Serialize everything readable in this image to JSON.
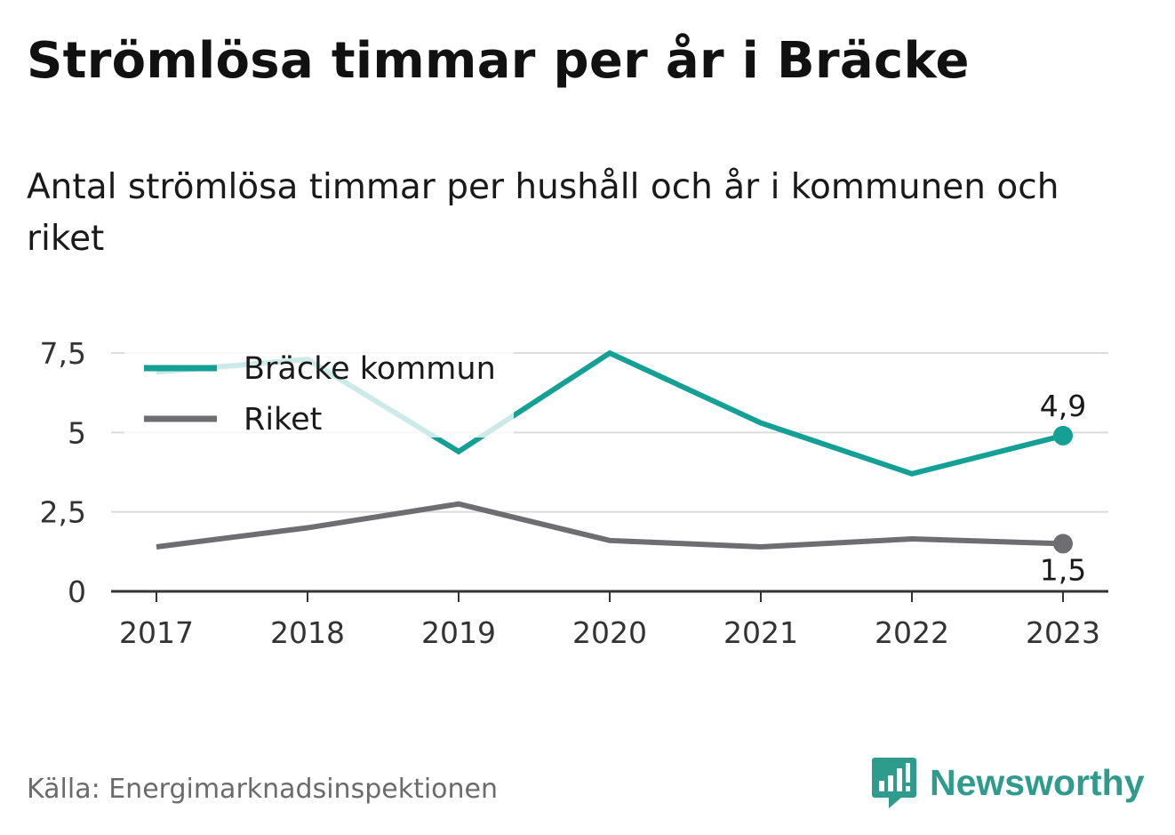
{
  "title": "Strömlösa timmar per år i Bräcke",
  "subtitle": "Antal strömlösa timmar per hushåll och år i kommunen och riket",
  "source": "Källa: Energimarknadsinspektionen",
  "brand": {
    "name": "Newsworthy",
    "logo_icon": "newsworthy-logo-icon",
    "color": "#2e9b8c"
  },
  "chart_data": {
    "type": "line",
    "x": [
      "2017",
      "2018",
      "2019",
      "2020",
      "2021",
      "2022",
      "2023"
    ],
    "series": [
      {
        "name": "Bräcke kommun",
        "color": "#14a095",
        "values": [
          6.9,
          7.3,
          4.4,
          7.5,
          5.3,
          3.7,
          4.9
        ],
        "end_label": "4,9"
      },
      {
        "name": "Riket",
        "color": "#6d6d72",
        "values": [
          1.4,
          2.0,
          2.75,
          1.6,
          1.4,
          1.65,
          1.5
        ],
        "end_label": "1,5"
      }
    ],
    "yticks": [
      {
        "value": 0,
        "label": "0"
      },
      {
        "value": 2.5,
        "label": "2,5"
      },
      {
        "value": 5,
        "label": "5"
      },
      {
        "value": 7.5,
        "label": "7,5"
      }
    ],
    "ylim": [
      0,
      7.5
    ],
    "grid": true,
    "legend": "top-left"
  }
}
